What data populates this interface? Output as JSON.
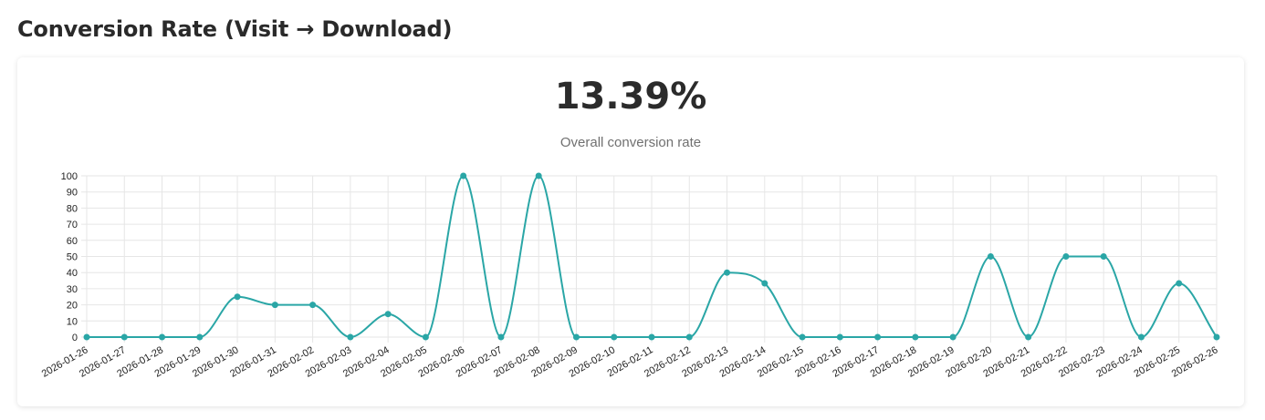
{
  "header": {
    "title": "Conversion Rate (Visit → Download)"
  },
  "summary": {
    "value": "13.39%",
    "label": "Overall conversion rate"
  },
  "colors": {
    "line": "#2aa6a6",
    "grid": "#e6e6e6"
  },
  "chart_data": {
    "type": "line",
    "categories": [
      "2026-01-26",
      "2026-01-27",
      "2026-01-28",
      "2026-01-29",
      "2026-01-30",
      "2026-01-31",
      "2026-02-02",
      "2026-02-03",
      "2026-02-04",
      "2026-02-05",
      "2026-02-06",
      "2026-02-07",
      "2026-02-08",
      "2026-02-09",
      "2026-02-10",
      "2026-02-11",
      "2026-02-12",
      "2026-02-13",
      "2026-02-14",
      "2026-02-15",
      "2026-02-16",
      "2026-02-17",
      "2026-02-18",
      "2026-02-19",
      "2026-02-20",
      "2026-02-21",
      "2026-02-22",
      "2026-02-23",
      "2026-02-24",
      "2026-02-25",
      "2026-02-26"
    ],
    "values": [
      0,
      0,
      0,
      0,
      25,
      20,
      20,
      0,
      14.3,
      0,
      100,
      0,
      100,
      0,
      0,
      0,
      0,
      40,
      33.3,
      0,
      0,
      0,
      0,
      0,
      50,
      0,
      50,
      50,
      0,
      33.3,
      0
    ],
    "ylim": [
      0,
      100
    ],
    "yticks": [
      0,
      10,
      20,
      30,
      40,
      50,
      60,
      70,
      80,
      90,
      100
    ],
    "grid": true,
    "smooth": true
  }
}
